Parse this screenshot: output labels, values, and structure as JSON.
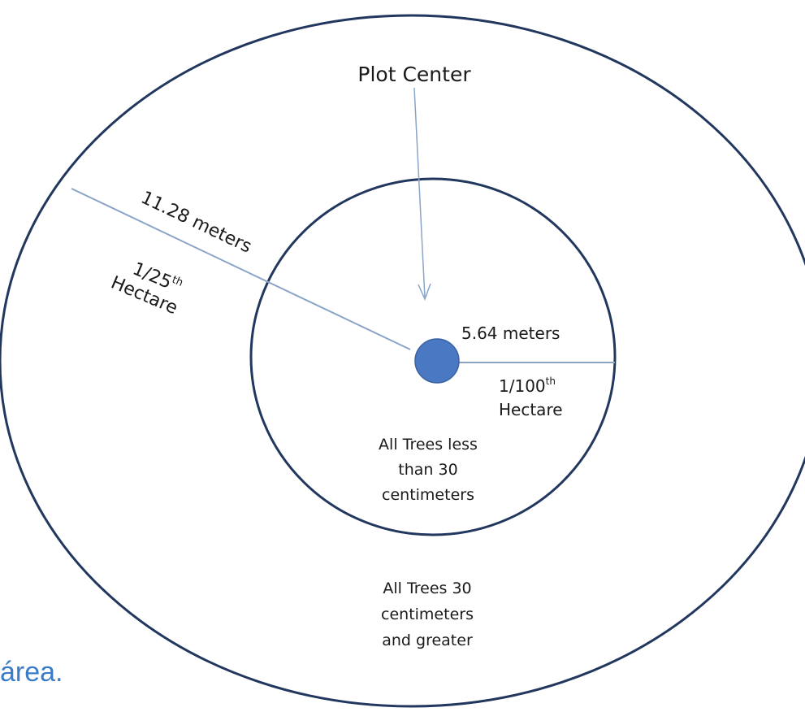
{
  "diagram": {
    "plot_center_label": "Plot Center",
    "outer_radius_label": "11.28 meters",
    "outer_area_fraction": "1/25",
    "outer_area_suffix": "th",
    "outer_area_unit": "Hectare",
    "inner_radius_label": "5.64 meters",
    "inner_area_fraction": "1/100",
    "inner_area_suffix": "th",
    "inner_area_unit": "Hectare",
    "inner_note_lines": [
      "All Trees less",
      "than 30",
      "centimeters"
    ],
    "outer_note_lines": [
      "All Trees 30",
      "centimeters",
      "and greater"
    ]
  },
  "caption": "área.",
  "colors": {
    "circle_stroke": "#22375e",
    "center_fill": "#4a78c2",
    "radius_line": "#8aa4c8",
    "caption_text": "#3a7cc7"
  }
}
